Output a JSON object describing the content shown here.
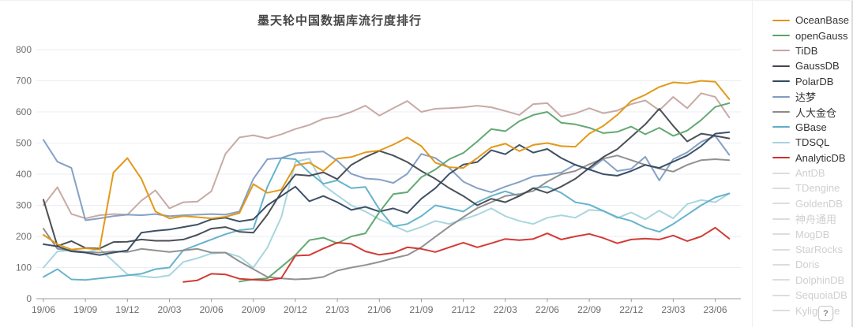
{
  "title": {
    "text": "墨天轮中国数据库流行度排行"
  },
  "help_button": {
    "label": "?"
  },
  "colors": {
    "title": "#464646",
    "axis_label": "#6e6e6e",
    "grid_line": "#e9eef5",
    "axis_line": "#9b9b9b",
    "disabled_legend_text": "#cfcfcf",
    "disabled_legend_swatch": "#dddddd"
  },
  "chart_data": {
    "type": "line",
    "title": "墨天轮中国数据库流行度排行",
    "x": [
      "19/06",
      "19/07",
      "19/08",
      "19/09",
      "19/10",
      "19/11",
      "19/12",
      "20/01",
      "20/02",
      "20/03",
      "20/04",
      "20/05",
      "20/06",
      "20/07",
      "20/08",
      "20/09",
      "20/10",
      "20/11",
      "20/12",
      "21/01",
      "21/02",
      "21/03",
      "21/04",
      "21/05",
      "21/06",
      "21/07",
      "21/08",
      "21/09",
      "21/10",
      "21/11",
      "21/12",
      "22/01",
      "22/02",
      "22/03",
      "22/04",
      "22/05",
      "22/06",
      "22/07",
      "22/08",
      "22/09",
      "22/10",
      "22/11",
      "22/12",
      "23/01",
      "23/02",
      "23/03",
      "23/04",
      "23/05",
      "23/06",
      "23/07"
    ],
    "x_tick_every": 3,
    "y_ticks": [
      0,
      100,
      200,
      300,
      400,
      500,
      600,
      700,
      800
    ],
    "ylim": [
      0,
      800
    ],
    "grid": true,
    "legend_position": "right",
    "series": [
      {
        "name": "OceanBase",
        "color": "#e2930d",
        "enabled": true,
        "z": 9,
        "values": [
          205,
          175,
          158,
          162,
          158,
          405,
          452,
          385,
          280,
          258,
          265,
          262,
          258,
          263,
          275,
          368,
          340,
          350,
          428,
          437,
          410,
          450,
          455,
          470,
          476,
          495,
          518,
          490,
          437,
          422,
          420,
          452,
          486,
          498,
          474,
          494,
          500,
          490,
          488,
          530,
          555,
          590,
          635,
          655,
          680,
          695,
          692,
          700,
          697,
          641
        ]
      },
      {
        "name": "openGauss",
        "color": "#5aa46c",
        "enabled": true,
        "z": 8,
        "values": [
          null,
          null,
          null,
          null,
          null,
          null,
          null,
          null,
          null,
          null,
          null,
          null,
          null,
          null,
          55,
          62,
          65,
          102,
          140,
          188,
          196,
          178,
          200,
          210,
          278,
          336,
          342,
          390,
          415,
          448,
          468,
          505,
          545,
          538,
          570,
          590,
          600,
          565,
          560,
          549,
          532,
          536,
          553,
          528,
          549,
          523,
          540,
          574,
          616,
          628
        ]
      },
      {
        "name": "TiDB",
        "color": "#c5a5a0",
        "enabled": true,
        "z": 3,
        "values": [
          300,
          358,
          272,
          258,
          268,
          272,
          270,
          315,
          348,
          290,
          310,
          312,
          345,
          465,
          518,
          525,
          515,
          528,
          545,
          558,
          578,
          585,
          600,
          620,
          588,
          612,
          635,
          600,
          610,
          612,
          615,
          620,
          615,
          603,
          590,
          625,
          628,
          585,
          595,
          612,
          596,
          604,
          625,
          637,
          605,
          648,
          612,
          660,
          648,
          582
        ]
      },
      {
        "name": "GaussDB",
        "color": "#41474d",
        "enabled": true,
        "z": 6,
        "values": [
          318,
          169,
          185,
          163,
          161,
          182,
          183,
          190,
          186,
          186,
          190,
          205,
          225,
          230,
          215,
          212,
          270,
          342,
          399,
          395,
          406,
          384,
          430,
          455,
          475,
          460,
          439,
          410,
          385,
          355,
          330,
          300,
          321,
          310,
          330,
          355,
          340,
          360,
          385,
          420,
          455,
          480,
          520,
          560,
          610,
          555,
          505,
          530,
          523,
          515
        ]
      },
      {
        "name": "PolarDB",
        "color": "#33485e",
        "enabled": true,
        "z": 7,
        "values": [
          175,
          168,
          152,
          148,
          140,
          148,
          155,
          212,
          218,
          222,
          230,
          238,
          255,
          260,
          248,
          255,
          300,
          330,
          360,
          313,
          330,
          310,
          285,
          295,
          280,
          290,
          275,
          321,
          355,
          401,
          431,
          439,
          477,
          464,
          494,
          469,
          481,
          452,
          430,
          415,
          400,
          395,
          410,
          430,
          420,
          440,
          460,
          490,
          530,
          535
        ]
      },
      {
        "name": "达梦",
        "color": "#7e9cc3",
        "enabled": true,
        "z": 4,
        "values": [
          510,
          440,
          420,
          252,
          258,
          265,
          270,
          268,
          272,
          265,
          268,
          270,
          272,
          270,
          280,
          385,
          448,
          452,
          467,
          470,
          473,
          443,
          401,
          386,
          383,
          372,
          401,
          465,
          452,
          420,
          376,
          355,
          342,
          360,
          375,
          393,
          398,
          405,
          431,
          414,
          448,
          410,
          417,
          456,
          380,
          448,
          470,
          504,
          523,
          462
        ]
      },
      {
        "name": "人大金仓",
        "color": "#8b8b8b",
        "enabled": true,
        "z": 5,
        "values": [
          225,
          160,
          155,
          150,
          148,
          152,
          150,
          160,
          155,
          150,
          155,
          160,
          148,
          148,
          120,
          95,
          70,
          65,
          62,
          64,
          70,
          90,
          100,
          108,
          118,
          130,
          140,
          165,
          199,
          232,
          262,
          291,
          310,
          330,
          336,
          346,
          376,
          400,
          410,
          432,
          450,
          460,
          445,
          430,
          418,
          408,
          430,
          445,
          448,
          445
        ]
      },
      {
        "name": "GBase",
        "color": "#5fafc9",
        "enabled": true,
        "z": 2,
        "values": [
          70,
          95,
          62,
          60,
          65,
          70,
          75,
          80,
          95,
          100,
          156,
          173,
          190,
          207,
          220,
          225,
          359,
          452,
          448,
          405,
          369,
          380,
          355,
          359,
          287,
          232,
          240,
          265,
          300,
          290,
          280,
          310,
          330,
          345,
          330,
          355,
          360,
          340,
          310,
          302,
          282,
          262,
          250,
          228,
          215,
          240,
          270,
          300,
          325,
          338
        ]
      },
      {
        "name": "TDSQL",
        "color": "#a3d4dd",
        "enabled": true,
        "z": 1,
        "values": [
          100,
          152,
          155,
          148,
          160,
          120,
          78,
          72,
          68,
          75,
          118,
          130,
          145,
          148,
          135,
          100,
          164,
          262,
          440,
          450,
          365,
          332,
          300,
          280,
          255,
          235,
          215,
          230,
          250,
          240,
          255,
          270,
          290,
          265,
          250,
          240,
          260,
          268,
          260,
          285,
          282,
          259,
          277,
          255,
          283,
          258,
          304,
          317,
          310,
          338
        ]
      },
      {
        "name": "AnalyticDB",
        "color": "#d0302b",
        "enabled": true,
        "z": 10,
        "values": [
          null,
          null,
          null,
          null,
          null,
          null,
          null,
          null,
          null,
          null,
          54,
          59,
          80,
          78,
          64,
          61,
          59,
          66,
          138,
          140,
          161,
          180,
          176,
          152,
          141,
          147,
          165,
          160,
          150,
          165,
          180,
          165,
          178,
          192,
          188,
          192,
          210,
          190,
          200,
          208,
          195,
          178,
          190,
          193,
          190,
          203,
          185,
          200,
          228,
          193
        ]
      },
      {
        "name": "AntDB",
        "color": "#dddddd",
        "enabled": false,
        "values": []
      },
      {
        "name": "TDengine",
        "color": "#dddddd",
        "enabled": false,
        "values": []
      },
      {
        "name": "GoldenDB",
        "color": "#dddddd",
        "enabled": false,
        "values": []
      },
      {
        "name": "神舟通用",
        "color": "#dddddd",
        "enabled": false,
        "values": []
      },
      {
        "name": "MogDB",
        "color": "#dddddd",
        "enabled": false,
        "values": []
      },
      {
        "name": "StarRocks",
        "color": "#dddddd",
        "enabled": false,
        "values": []
      },
      {
        "name": "Doris",
        "color": "#dddddd",
        "enabled": false,
        "values": []
      },
      {
        "name": "DolphinDB",
        "color": "#dddddd",
        "enabled": false,
        "values": []
      },
      {
        "name": "SequoiaDB",
        "color": "#dddddd",
        "enabled": false,
        "values": []
      },
      {
        "name": "Kyligence",
        "color": "#dddddd",
        "enabled": false,
        "values": []
      }
    ]
  }
}
